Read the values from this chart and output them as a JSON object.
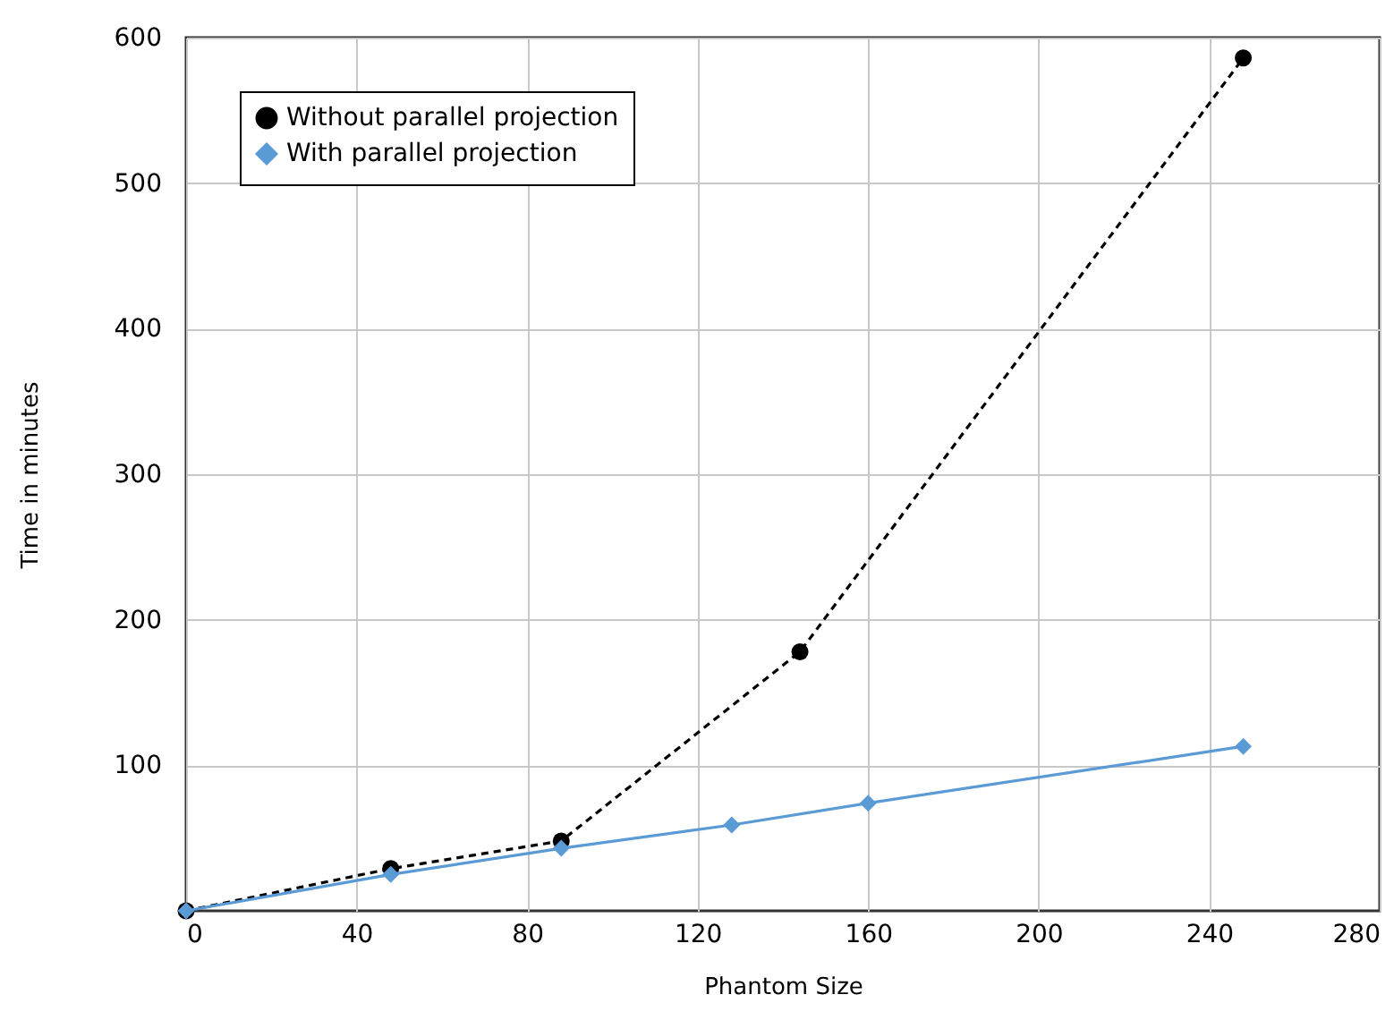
{
  "chart_data": {
    "type": "line",
    "xlabel": "Phantom Size",
    "ylabel": "Time in minutes",
    "xlim": [
      0,
      280
    ],
    "xticks": [
      0,
      40,
      80,
      120,
      160,
      200,
      240,
      280
    ],
    "ylim": [
      0,
      600
    ],
    "yticks": [
      100,
      200,
      300,
      400,
      500,
      600
    ],
    "grid": true,
    "legend": "top left",
    "series": [
      {
        "name": "Without parallel projection",
        "color": "#000000",
        "marker": "circle",
        "line_style": "dashed",
        "x": [
          0,
          48,
          88,
          144,
          248
        ],
        "values": [
          0,
          29,
          48,
          178,
          586
        ]
      },
      {
        "name": "With parallel projection",
        "color": "#5b9bd5",
        "marker": "diamond",
        "line_style": "solid",
        "x": [
          0,
          48,
          88,
          128,
          160,
          248
        ],
        "values": [
          0,
          25,
          43,
          59,
          74,
          113
        ]
      }
    ]
  }
}
